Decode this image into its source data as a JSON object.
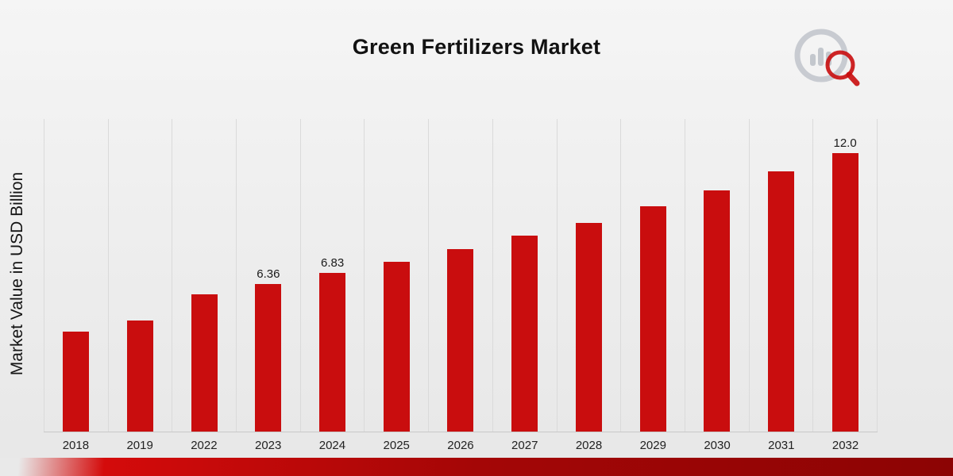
{
  "page": {
    "title": "Green Fertilizers Market"
  },
  "chart_data": {
    "type": "bar",
    "title": "Green Fertilizers Market",
    "xlabel": "",
    "ylabel": "Market Value in USD Billion",
    "categories": [
      "2018",
      "2019",
      "2022",
      "2023",
      "2024",
      "2025",
      "2026",
      "2027",
      "2028",
      "2029",
      "2030",
      "2031",
      "2032"
    ],
    "values": [
      4.3,
      4.8,
      5.9,
      6.36,
      6.83,
      7.3,
      7.85,
      8.45,
      9.0,
      9.7,
      10.4,
      11.2,
      12.0
    ],
    "bar_labels": [
      "",
      "",
      "",
      "6.36",
      "6.83",
      "",
      "",
      "",
      "",
      "",
      "",
      "",
      "12.0"
    ],
    "ylim": [
      0,
      13.5
    ],
    "grid": "vertical-only",
    "legend": "none",
    "bar_color": "#c90d0e"
  },
  "colors": {
    "accent_red": "#c90d0e",
    "footer_dark_red": "#8c0404",
    "gridline": "#dadada",
    "background": "#ededed",
    "logo_gray": "#b9bec6"
  },
  "logo": {
    "label": "chart-magnifier-logo"
  }
}
